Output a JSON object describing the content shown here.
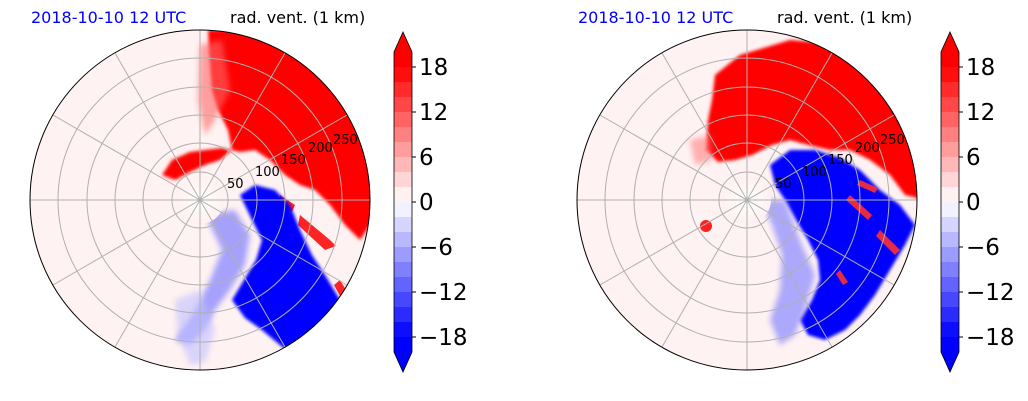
{
  "chart_data": [
    {
      "type": "heatmap",
      "projection": "polar",
      "date_label": "2018-10-10 12 UTC",
      "title": "rad. vent. (1 km)",
      "radial_ticks": [
        "50",
        "100",
        "150",
        "200",
        "250"
      ],
      "colorbar": {
        "min": -20,
        "max": 20,
        "extend": "both",
        "ticks": [
          18,
          12,
          6,
          0,
          -6,
          -12,
          -18
        ],
        "tick_labels": [
          "18",
          "12",
          "6",
          "0",
          "−6",
          "−12",
          "−18"
        ],
        "colors": {
          "low": "#0000ff",
          "mid": "#ffffff",
          "high": "#ff0000"
        }
      },
      "grid": true
    },
    {
      "type": "heatmap",
      "projection": "polar",
      "date_label": "2018-10-10 12 UTC",
      "title": "rad. vent. (1 km)",
      "radial_ticks": [
        "50",
        "100",
        "150",
        "200",
        "250"
      ],
      "colorbar": {
        "min": -20,
        "max": 20,
        "extend": "both",
        "ticks": [
          18,
          12,
          6,
          0,
          -6,
          -12,
          -18
        ],
        "tick_labels": [
          "18",
          "12",
          "6",
          "0",
          "−6",
          "−12",
          "−18"
        ],
        "colors": {
          "low": "#0000ff",
          "mid": "#ffffff",
          "high": "#ff0000"
        }
      },
      "grid": true
    }
  ]
}
